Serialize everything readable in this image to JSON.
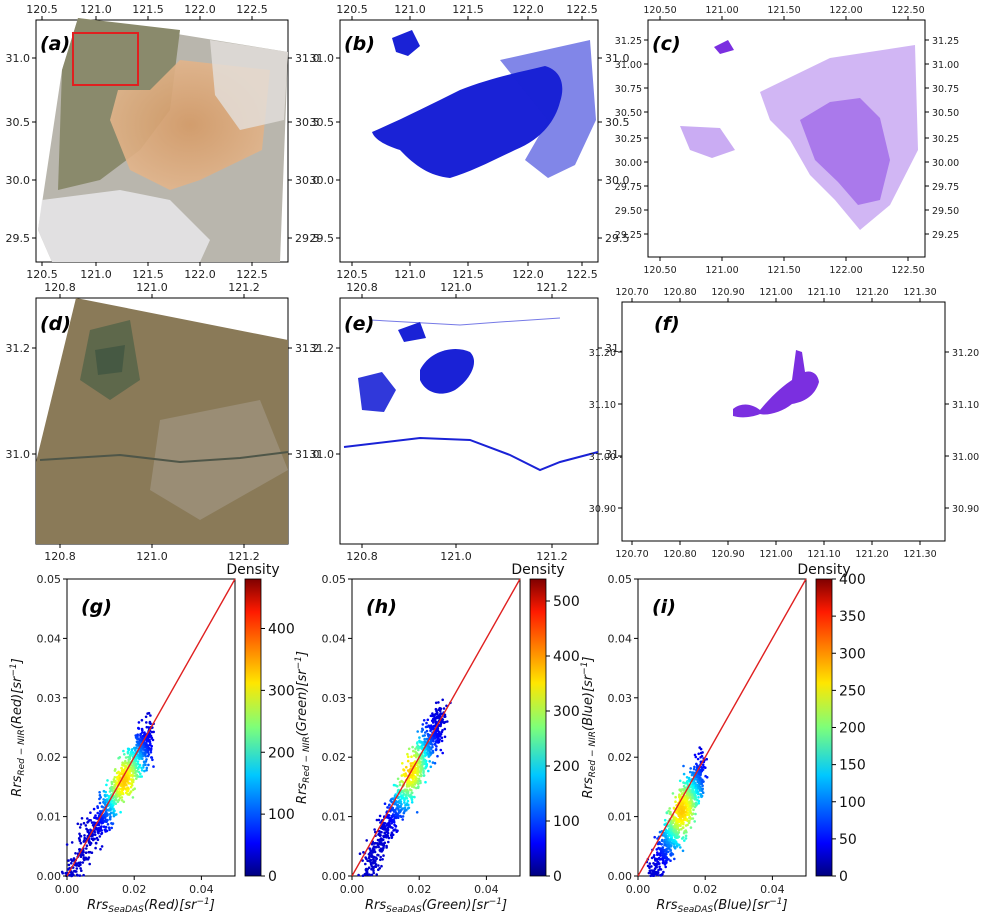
{
  "panel_labels": {
    "a": "(a)",
    "b": "(b)",
    "c": "(c)",
    "d": "(d)",
    "e": "(e)",
    "f": "(f)",
    "g": "(g)",
    "h": "(h)",
    "i": "(i)"
  },
  "maps": {
    "a": {
      "x_ticks": [
        "120.5",
        "121.0",
        "121.5",
        "122.0",
        "122.5"
      ],
      "y_ticks": [
        "31.0",
        "30.5",
        "30.0",
        "29.5"
      ],
      "content": "true-color satellite image",
      "highlight_box_color": "#e02020"
    },
    "b": {
      "x_ticks": [
        "120.5",
        "121.0",
        "121.5",
        "122.0",
        "122.5"
      ],
      "y_ticks": [
        "31.0",
        "30.5",
        "30.0",
        "29.5"
      ],
      "content": "water mask",
      "color": "#1a22d6"
    },
    "c": {
      "x_ticks": [
        "120.50",
        "121.00",
        "121.50",
        "122.00",
        "122.50"
      ],
      "y_ticks": [
        "31.25",
        "31.00",
        "30.75",
        "30.50",
        "30.25",
        "30.00",
        "29.75",
        "29.50",
        "29.25"
      ],
      "content": "water mask",
      "color": "#7b2fe0"
    },
    "d": {
      "x_ticks": [
        "120.8",
        "121.0",
        "121.2"
      ],
      "y_ticks": [
        "31.2",
        "31.0"
      ],
      "content": "true-color satellite image (zoom)"
    },
    "e": {
      "x_ticks": [
        "120.8",
        "121.0",
        "121.2"
      ],
      "y_ticks": [
        "31.2",
        "31.0"
      ],
      "content": "water mask (zoom)",
      "color": "#1a22d6"
    },
    "f": {
      "x_ticks": [
        "120.70",
        "120.80",
        "120.90",
        "121.00",
        "121.10",
        "121.20",
        "121.30"
      ],
      "y_ticks": [
        "31.20",
        "31.10",
        "31.00",
        "30.90"
      ],
      "content": "water mask (zoom)",
      "color": "#7b2fe0"
    }
  },
  "chart_data": [
    {
      "type": "scatter",
      "panel": "g",
      "subtype": "density scatter",
      "x_label_main": "Rrs",
      "x_label_sub": "SeaDAS",
      "x_label_rest": "(Red)[sr",
      "y_label_main": "Rrs",
      "y_label_sub": "Red − NIR",
      "y_label_rest": "(Red)[sr",
      "inv_exp": "−1",
      "close": "]",
      "xlim": [
        0,
        0.05
      ],
      "ylim": [
        0,
        0.05
      ],
      "x_ticks": [
        "0.00",
        "0.02",
        "0.04"
      ],
      "y_ticks": [
        "0.00",
        "0.01",
        "0.02",
        "0.03",
        "0.04",
        "0.05"
      ],
      "reference_line": "1:1",
      "cluster": {
        "x_range": [
          0.0,
          0.025
        ],
        "y_range": [
          0.0,
          0.026
        ],
        "peak": [
          0.017,
          0.016
        ]
      },
      "colorbar": {
        "title": "Density",
        "min": 0,
        "max": 480,
        "ticks": [
          "0",
          "100",
          "200",
          "300",
          "400"
        ]
      }
    },
    {
      "type": "scatter",
      "panel": "h",
      "subtype": "density scatter",
      "x_label_main": "Rrs",
      "x_label_sub": "SeaDAS",
      "x_label_rest": "(Green)[sr",
      "y_label_main": "Rrs",
      "y_label_sub": "Red − NIR",
      "y_label_rest": "(Green)[sr",
      "inv_exp": "−1",
      "close": "]",
      "xlim": [
        0,
        0.05
      ],
      "ylim": [
        0,
        0.05
      ],
      "x_ticks": [
        "0.00",
        "0.02",
        "0.04"
      ],
      "y_ticks": [
        "0.00",
        "0.01",
        "0.02",
        "0.03",
        "0.04",
        "0.05"
      ],
      "reference_line": "1:1",
      "cluster": {
        "x_range": [
          0.003,
          0.027
        ],
        "y_range": [
          0.0,
          0.029
        ],
        "peak": [
          0.017,
          0.018
        ]
      },
      "colorbar": {
        "title": "Density",
        "min": 0,
        "max": 540,
        "ticks": [
          "0",
          "100",
          "200",
          "300",
          "400",
          "500"
        ]
      }
    },
    {
      "type": "scatter",
      "panel": "i",
      "subtype": "density scatter",
      "x_label_main": "Rrs",
      "x_label_sub": "SeaDAS",
      "x_label_rest": "(Blue)[sr",
      "y_label_main": "Rrs",
      "y_label_sub": "Red − NIR",
      "y_label_rest": "(Blue)[sr",
      "inv_exp": "−1",
      "close": "]",
      "xlim": [
        0,
        0.05
      ],
      "ylim": [
        0,
        0.05
      ],
      "x_ticks": [
        "0.00",
        "0.02",
        "0.04"
      ],
      "y_ticks": [
        "0.00",
        "0.01",
        "0.02",
        "0.03",
        "0.04",
        "0.05"
      ],
      "reference_line": "1:1",
      "cluster": {
        "x_range": [
          0.004,
          0.019
        ],
        "y_range": [
          0.0,
          0.019
        ],
        "peak": [
          0.013,
          0.011
        ]
      },
      "colorbar": {
        "title": "Density",
        "min": 0,
        "max": 400,
        "ticks": [
          "0",
          "50",
          "100",
          "150",
          "200",
          "250",
          "300",
          "350",
          "400"
        ]
      }
    }
  ],
  "colors": {
    "one_to_one_line": "#e02020",
    "water_blue": "#1a22d6",
    "water_purple": "#7b2fe0"
  }
}
